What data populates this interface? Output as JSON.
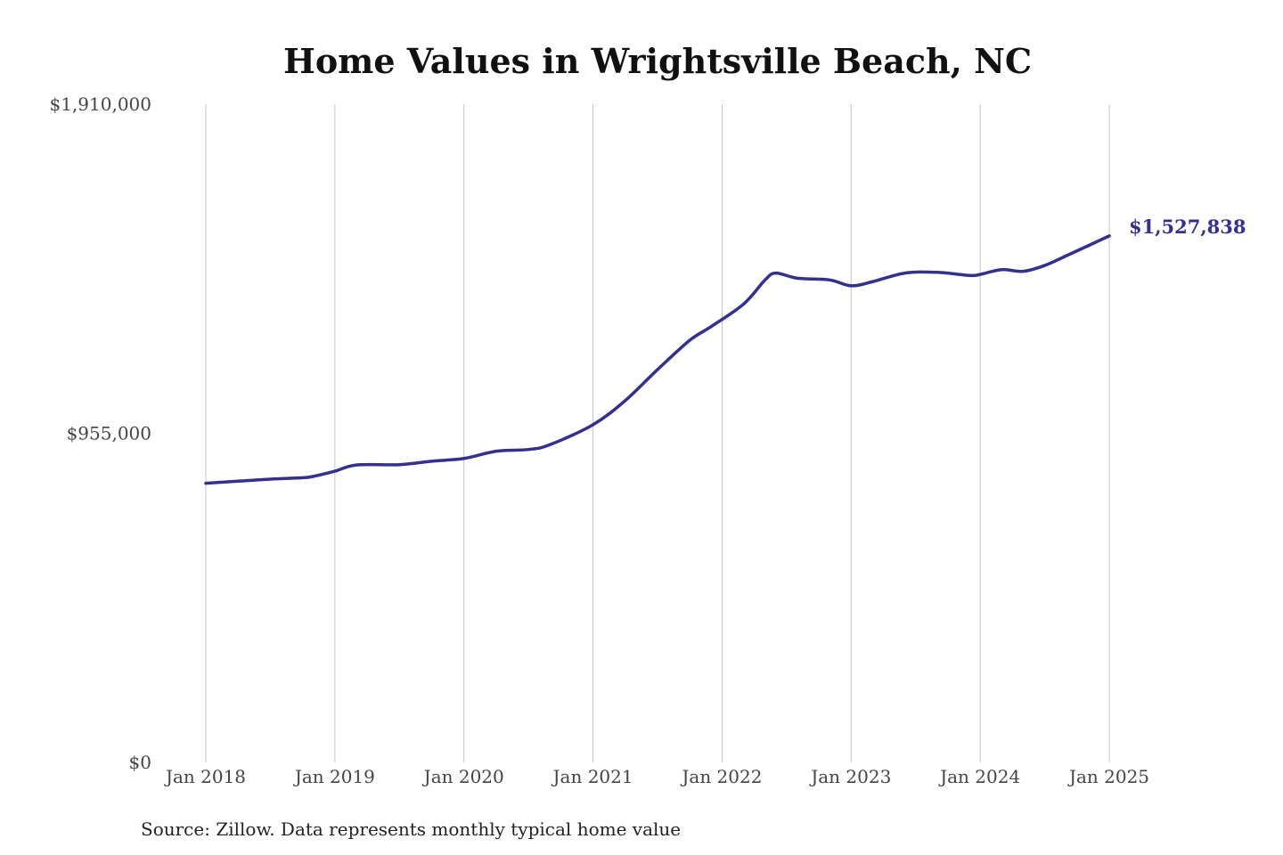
{
  "chart_data": {
    "type": "line",
    "title": "Home Values in Wrightsville Beach, NC",
    "xlabel": "",
    "ylabel": "",
    "source": "Source: Zillow. Data represents monthly typical home value",
    "x_ticks": [
      "Jan 2018",
      "Jan 2019",
      "Jan 2020",
      "Jan 2021",
      "Jan 2022",
      "Jan 2023",
      "Jan 2024",
      "Jan 2025"
    ],
    "y_ticks": [
      "$0",
      "$955,000",
      "$1,910,000"
    ],
    "ylim": [
      0,
      1910000
    ],
    "xlim": [
      "2018-01",
      "2025-01"
    ],
    "grid": "vertical",
    "end_label": "$1,527,838",
    "colors": {
      "line": "#33308e",
      "grid": "#c4c4c4"
    },
    "series": [
      {
        "x": [
          "2018-01",
          "2018-04",
          "2018-07",
          "2018-10",
          "2018-11",
          "2019-01",
          "2019-03",
          "2019-07",
          "2019-10",
          "2020-01",
          "2020-04",
          "2020-07",
          "2020-09",
          "2021-01",
          "2021-04",
          "2021-07",
          "2021-10",
          "2021-12",
          "2022-03",
          "2022-05",
          "2022-06",
          "2022-08",
          "2022-11",
          "2023-01",
          "2023-03",
          "2023-06",
          "2023-09",
          "2023-12",
          "2024-01",
          "2024-03",
          "2024-05",
          "2024-07",
          "2024-09",
          "2025-01"
        ],
        "values": [
          810000,
          816000,
          822000,
          826000,
          830000,
          845000,
          863000,
          864000,
          874000,
          882000,
          903000,
          908000,
          922000,
          980000,
          1050000,
          1140000,
          1225000,
          1265000,
          1330000,
          1400000,
          1420000,
          1405000,
          1400000,
          1383000,
          1395000,
          1420000,
          1422000,
          1413000,
          1416000,
          1430000,
          1425000,
          1442000,
          1470000,
          1527838
        ]
      }
    ]
  }
}
